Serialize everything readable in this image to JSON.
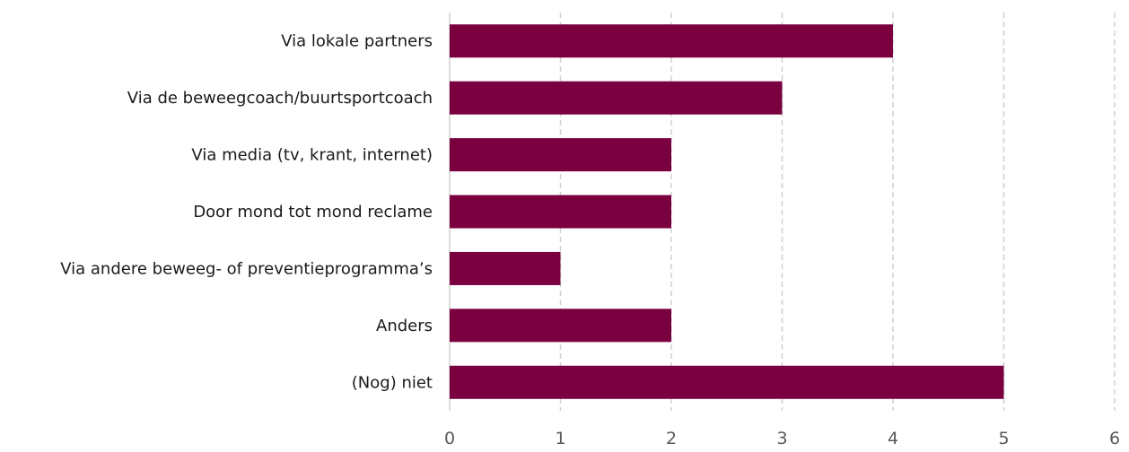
{
  "chart_data": {
    "type": "bar",
    "orientation": "horizontal",
    "categories": [
      "Via lokale partners ",
      "Via de beweegcoach/buurtsportcoach",
      "Via media (tv, krant, internet)",
      "Door mond tot mond reclame",
      "Via andere beweeg- of preventieprogramma’s",
      "Anders",
      "(Nog) niet"
    ],
    "values": [
      4,
      3,
      2,
      2,
      1,
      2,
      5
    ],
    "xlim": [
      0,
      6
    ],
    "xticks": [
      "0",
      "1",
      "2",
      "3",
      "4",
      "5",
      "6"
    ],
    "grid": true,
    "grid_style": "dashed",
    "bar_color": "#7a0040",
    "grid_color": "#d0d0d0",
    "label_color": "#1a1a1a",
    "tick_color": "#595959"
  }
}
